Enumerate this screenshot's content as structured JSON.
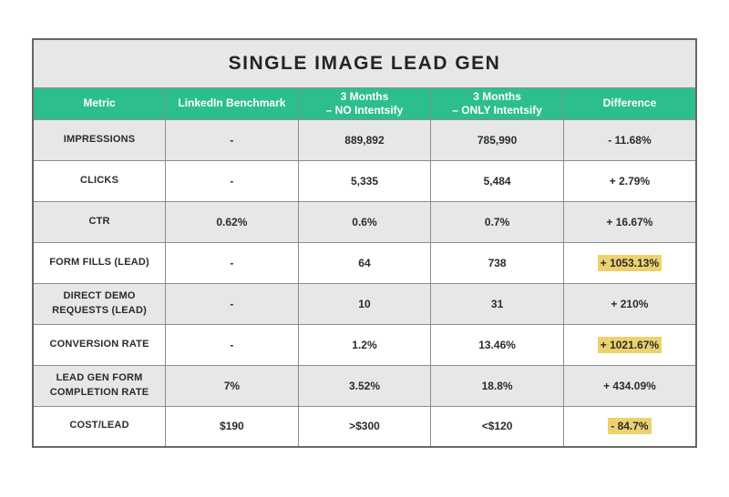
{
  "colors": {
    "header_bg": "#2dbe8f",
    "header_text": "#ffffff",
    "title_bar_bg": "#e8e7e8",
    "alt_row_bg": "#e8e7e8",
    "highlight_bg": "#ecd26e",
    "border": "#8c8c8c",
    "text": "#2b2b2b"
  },
  "chart_data": {
    "type": "table",
    "title": "SINGLE IMAGE LEAD GEN",
    "columns": [
      [
        "Metric"
      ],
      [
        "LinkedIn Benchmark"
      ],
      [
        "3 Months",
        "– NO Intentsify"
      ],
      [
        "3 Months",
        "– ONLY Intentsify"
      ],
      [
        "Difference"
      ]
    ],
    "rows": [
      [
        "IMPRESSIONS",
        "-",
        "889,892",
        "785,990",
        "- 11.68%"
      ],
      [
        "CLICKS",
        "-",
        "5,335",
        "5,484",
        "+ 2.79%"
      ],
      [
        "CTR",
        "0.62%",
        "0.6%",
        "0.7%",
        "+ 16.67%"
      ],
      [
        "FORM FILLS (LEAD)",
        "-",
        "64",
        "738",
        "+ 1053.13%"
      ],
      [
        "DIRECT DEMO REQUESTS (LEAD)",
        "-",
        "10",
        "31",
        "+ 210%"
      ],
      [
        "CONVERSION RATE",
        "-",
        "1.2%",
        "13.46%",
        "+ 1021.67%"
      ],
      [
        "LEAD GEN FORM COMPLETION RATE",
        "7%",
        "3.52%",
        "18.8%",
        "+ 434.09%"
      ],
      [
        "COST/LEAD",
        "$190",
        ">$300",
        "<$120",
        "- 84.7%"
      ]
    ],
    "highlighted_difference_rows": [
      "FORM FILLS (LEAD)",
      "CONVERSION RATE",
      "COST/LEAD"
    ],
    "legend_position": "none",
    "grid": true
  }
}
